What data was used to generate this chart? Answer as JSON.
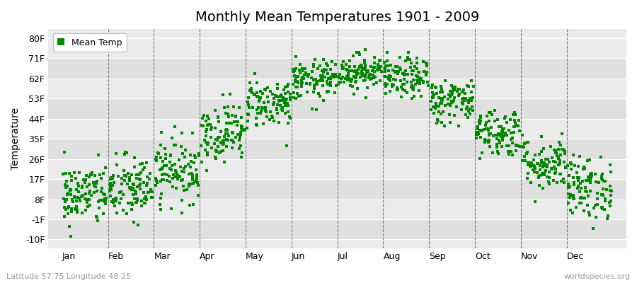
{
  "title": "Monthly Mean Temperatures 1901 - 2009",
  "ylabel": "Temperature",
  "subtitle_left": "Latitude 57.75 Longitude 48.25",
  "subtitle_right": "worldspecies.org",
  "legend_label": "Mean Temp",
  "marker_color": "#008800",
  "background_color": "#ffffff",
  "plot_bg_color": "#ebebeb",
  "stripe_colors": [
    "#e0e0e0",
    "#ebebeb"
  ],
  "ytick_labels": [
    "-10F",
    "-1F",
    "8F",
    "17F",
    "26F",
    "35F",
    "44F",
    "53F",
    "62F",
    "71F",
    "80F"
  ],
  "ytick_values": [
    -10,
    -1,
    8,
    17,
    26,
    35,
    44,
    53,
    62,
    71,
    80
  ],
  "ylim": [
    -14,
    84
  ],
  "months": [
    "Jan",
    "Feb",
    "Mar",
    "Apr",
    "May",
    "Jun",
    "Jul",
    "Aug",
    "Sep",
    "Oct",
    "Nov",
    "Dec"
  ],
  "mean_temps_F": [
    10.0,
    12.5,
    21.0,
    38.0,
    51.0,
    61.0,
    65.0,
    62.0,
    52.0,
    38.0,
    24.0,
    13.0
  ],
  "std_temps_F": [
    7.0,
    7.5,
    7.0,
    6.5,
    5.5,
    4.5,
    4.0,
    4.5,
    5.0,
    5.5,
    6.0,
    7.0
  ],
  "years": 109,
  "seed": 42
}
